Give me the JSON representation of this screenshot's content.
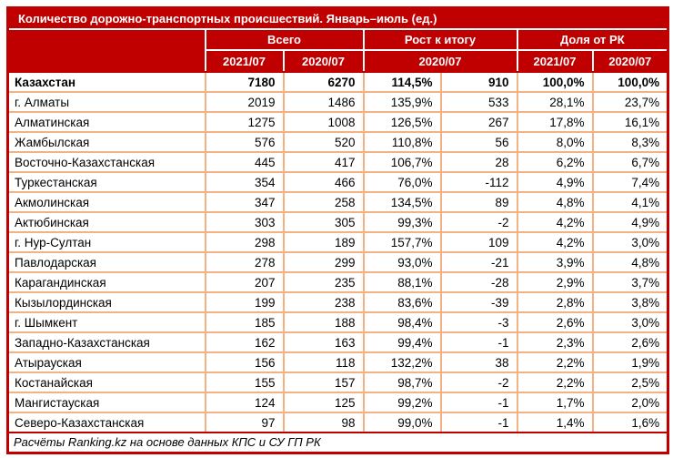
{
  "colors": {
    "header_bg": "#C00000",
    "header_text": "#FFFFFF",
    "grid_border": "#F4B183",
    "outer_border": "#C00000",
    "body_text": "#000000"
  },
  "chart_data": {
    "type": "table",
    "title": "Количество дорожно-транспортных происшествий. Январь–июль (ед.)",
    "column_groups": [
      {
        "label": "Всего",
        "span": 2
      },
      {
        "label": "Рост к итогу",
        "span": 2
      },
      {
        "label": "Доля от РК",
        "span": 2
      }
    ],
    "sub_headers": [
      "2021/07",
      "2020/07",
      "2020/07",
      "2021/07",
      "2020/07"
    ],
    "rows": [
      {
        "region": "Казахстан",
        "bold": true,
        "values": [
          7180,
          6270,
          "114,5%",
          910,
          "100,0%",
          "100,0%"
        ]
      },
      {
        "region": "г. Алматы",
        "bold": false,
        "values": [
          2019,
          1486,
          "135,9%",
          533,
          "28,1%",
          "23,7%"
        ]
      },
      {
        "region": "Алматинская",
        "bold": false,
        "values": [
          1275,
          1008,
          "126,5%",
          267,
          "17,8%",
          "16,1%"
        ]
      },
      {
        "region": "Жамбылская",
        "bold": false,
        "values": [
          576,
          520,
          "110,8%",
          56,
          "8,0%",
          "8,3%"
        ]
      },
      {
        "region": "Восточно-Казахстанская",
        "bold": false,
        "values": [
          445,
          417,
          "106,7%",
          28,
          "6,2%",
          "6,7%"
        ]
      },
      {
        "region": "Туркестанская",
        "bold": false,
        "values": [
          354,
          466,
          "76,0%",
          -112,
          "4,9%",
          "7,4%"
        ]
      },
      {
        "region": "Акмолинская",
        "bold": false,
        "values": [
          347,
          258,
          "134,5%",
          89,
          "4,8%",
          "4,1%"
        ]
      },
      {
        "region": "Актюбинская",
        "bold": false,
        "values": [
          303,
          305,
          "99,3%",
          -2,
          "4,2%",
          "4,9%"
        ]
      },
      {
        "region": "г. Нур-Султан",
        "bold": false,
        "values": [
          298,
          189,
          "157,7%",
          109,
          "4,2%",
          "3,0%"
        ]
      },
      {
        "region": "Павлодарская",
        "bold": false,
        "values": [
          278,
          299,
          "93,0%",
          -21,
          "3,9%",
          "4,8%"
        ]
      },
      {
        "region": "Карагандинская",
        "bold": false,
        "values": [
          207,
          235,
          "88,1%",
          -28,
          "2,9%",
          "3,7%"
        ]
      },
      {
        "region": "Кызылординская",
        "bold": false,
        "values": [
          199,
          238,
          "83,6%",
          -39,
          "2,8%",
          "3,8%"
        ]
      },
      {
        "region": "г. Шымкент",
        "bold": false,
        "values": [
          185,
          188,
          "98,4%",
          -3,
          "2,6%",
          "3,0%"
        ]
      },
      {
        "region": "Западно-Казахстанская",
        "bold": false,
        "values": [
          162,
          163,
          "99,4%",
          -1,
          "2,3%",
          "2,6%"
        ]
      },
      {
        "region": "Атырауская",
        "bold": false,
        "values": [
          156,
          118,
          "132,2%",
          38,
          "2,2%",
          "1,9%"
        ]
      },
      {
        "region": "Костанайская",
        "bold": false,
        "values": [
          155,
          157,
          "98,7%",
          -2,
          "2,2%",
          "2,5%"
        ]
      },
      {
        "region": "Мангистауская",
        "bold": false,
        "values": [
          124,
          125,
          "99,2%",
          -1,
          "1,7%",
          "2,0%"
        ]
      },
      {
        "region": "Северо-Казахстанская",
        "bold": false,
        "values": [
          97,
          98,
          "99,0%",
          -1,
          "1,4%",
          "1,6%"
        ]
      }
    ],
    "source_note": "Расчёты Ranking.kz на основе данных КПС и СУ ГП РК"
  }
}
